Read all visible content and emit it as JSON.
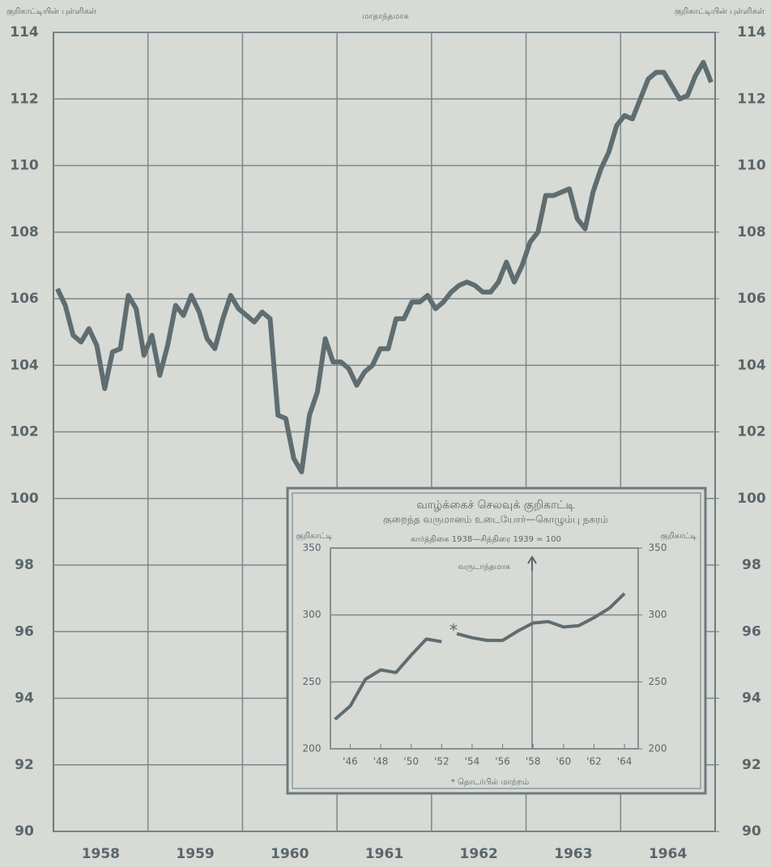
{
  "chart_data": [
    {
      "type": "line",
      "title": "மாதாந்தமாக",
      "y_label": "குறிகாட்டியின் புள்ளிகள்",
      "y2_label": "குறிகாட்டியின் புள்ளிகள்",
      "xlim": [
        1958,
        1965
      ],
      "xticks": [
        {
          "value": 1958.5,
          "label": "1958"
        },
        {
          "value": 1959.5,
          "label": "1959"
        },
        {
          "value": 1960.5,
          "label": "1960"
        },
        {
          "value": 1961.5,
          "label": "1961"
        },
        {
          "value": 1962.5,
          "label": "1962"
        },
        {
          "value": 1963.5,
          "label": "1963"
        },
        {
          "value": 1964.5,
          "label": "1964"
        }
      ],
      "xgrid": [
        1959,
        1960,
        1961,
        1962,
        1963,
        1964
      ],
      "ylim": [
        90,
        114
      ],
      "yticks": [
        90,
        92,
        94,
        96,
        98,
        100,
        102,
        104,
        106,
        108,
        110,
        112,
        114
      ],
      "y2lim": [
        90,
        114
      ],
      "y2ticks": [
        90,
        92,
        94,
        96,
        98,
        100,
        102,
        104,
        106,
        108,
        110,
        112,
        114
      ],
      "grid": true,
      "color": "#5f6d71",
      "x": [
        1958.042,
        1958.125,
        1958.208,
        1958.292,
        1958.375,
        1958.458,
        1958.542,
        1958.625,
        1958.708,
        1958.792,
        1958.875,
        1958.958,
        1959.042,
        1959.125,
        1959.208,
        1959.292,
        1959.375,
        1959.458,
        1959.542,
        1959.625,
        1959.708,
        1959.792,
        1959.875,
        1959.958,
        1960.042,
        1960.125,
        1960.208,
        1960.292,
        1960.375,
        1960.458,
        1960.542,
        1960.625,
        1960.708,
        1960.792,
        1960.875,
        1960.958,
        1961.042,
        1961.125,
        1961.208,
        1961.292,
        1961.375,
        1961.458,
        1961.542,
        1961.625,
        1961.708,
        1961.792,
        1961.875,
        1961.958,
        1962.042,
        1962.125,
        1962.208,
        1962.292,
        1962.375,
        1962.458,
        1962.542,
        1962.625,
        1962.708,
        1962.792,
        1962.875,
        1962.958,
        1963.042,
        1963.125,
        1963.208,
        1963.292,
        1963.375,
        1963.458,
        1963.542,
        1963.625,
        1963.708,
        1963.792,
        1963.875,
        1963.958,
        1964.042,
        1964.125,
        1964.208,
        1964.292,
        1964.375,
        1964.458,
        1964.542,
        1964.625,
        1964.708,
        1964.792,
        1964.875,
        1964.958
      ],
      "values": [
        106.3,
        105.8,
        104.9,
        104.7,
        105.1,
        104.6,
        103.3,
        104.4,
        104.5,
        106.1,
        105.7,
        104.3,
        104.9,
        103.7,
        104.6,
        105.8,
        105.5,
        106.1,
        105.6,
        104.8,
        104.5,
        105.4,
        106.1,
        105.7,
        105.5,
        105.3,
        105.6,
        105.4,
        102.5,
        102.4,
        101.2,
        100.8,
        102.5,
        103.2,
        104.8,
        104.1,
        104.1,
        103.9,
        103.4,
        103.8,
        104.0,
        104.5,
        104.5,
        105.4,
        105.4,
        105.9,
        105.9,
        106.1,
        105.7,
        105.9,
        106.2,
        106.4,
        106.5,
        106.4,
        106.2,
        106.2,
        106.5,
        107.1,
        106.5,
        107.0,
        107.7,
        108.0,
        109.1,
        109.1,
        109.2,
        109.3,
        108.4,
        108.1,
        109.2,
        109.9,
        110.4,
        111.2,
        111.5,
        111.4,
        112.0,
        112.6,
        112.8,
        112.8,
        112.4,
        112.0,
        112.1,
        112.7,
        113.1,
        112.5
      ]
    },
    {
      "type": "line",
      "title": "வாழ்க்கைச் செலவுக் குறிகாட்டி",
      "subtitle": "குறைந்த வருமானம் உடையோர்—கொழும்பு நகரம்",
      "y_label": "குறிகாட்டி",
      "y2_label": "குறிகாட்டி",
      "note": "கார்த்திகை 1938—சித்திரை 1939 = 100",
      "annotation": "வருடாந்தமாக",
      "break_mark": "*",
      "footnote": "* தொடர்பில் மாற்றம்",
      "xlim": [
        1944.7,
        1964.9
      ],
      "xticks": [
        {
          "value": 1946,
          "label": "'46"
        },
        {
          "value": 1948,
          "label": "'48"
        },
        {
          "value": 1950,
          "label": "'50"
        },
        {
          "value": 1952,
          "label": "'52"
        },
        {
          "value": 1954,
          "label": "'54"
        },
        {
          "value": 1956,
          "label": "'56"
        },
        {
          "value": 1958,
          "label": "'58"
        },
        {
          "value": 1960,
          "label": "'60"
        },
        {
          "value": 1962,
          "label": "'62"
        },
        {
          "value": 1964,
          "label": "'64"
        }
      ],
      "ylim": [
        200,
        350
      ],
      "yticks": [
        200,
        250,
        300,
        350
      ],
      "y2lim": [
        200,
        350
      ],
      "y2ticks": [
        200,
        250,
        300,
        350
      ],
      "grid": true,
      "color": "#5f6d71",
      "x": [
        1945,
        1946,
        1947,
        1948,
        1949,
        1950,
        1951,
        1952,
        null,
        1953,
        1954,
        1955,
        1956,
        1957,
        1958,
        1959,
        1960,
        1961,
        1962,
        1963,
        1964
      ],
      "values": [
        222,
        232,
        252,
        259,
        257,
        270,
        282,
        280,
        null,
        286,
        283,
        281,
        281,
        288,
        294,
        295,
        291,
        292,
        298,
        305,
        316
      ]
    }
  ]
}
